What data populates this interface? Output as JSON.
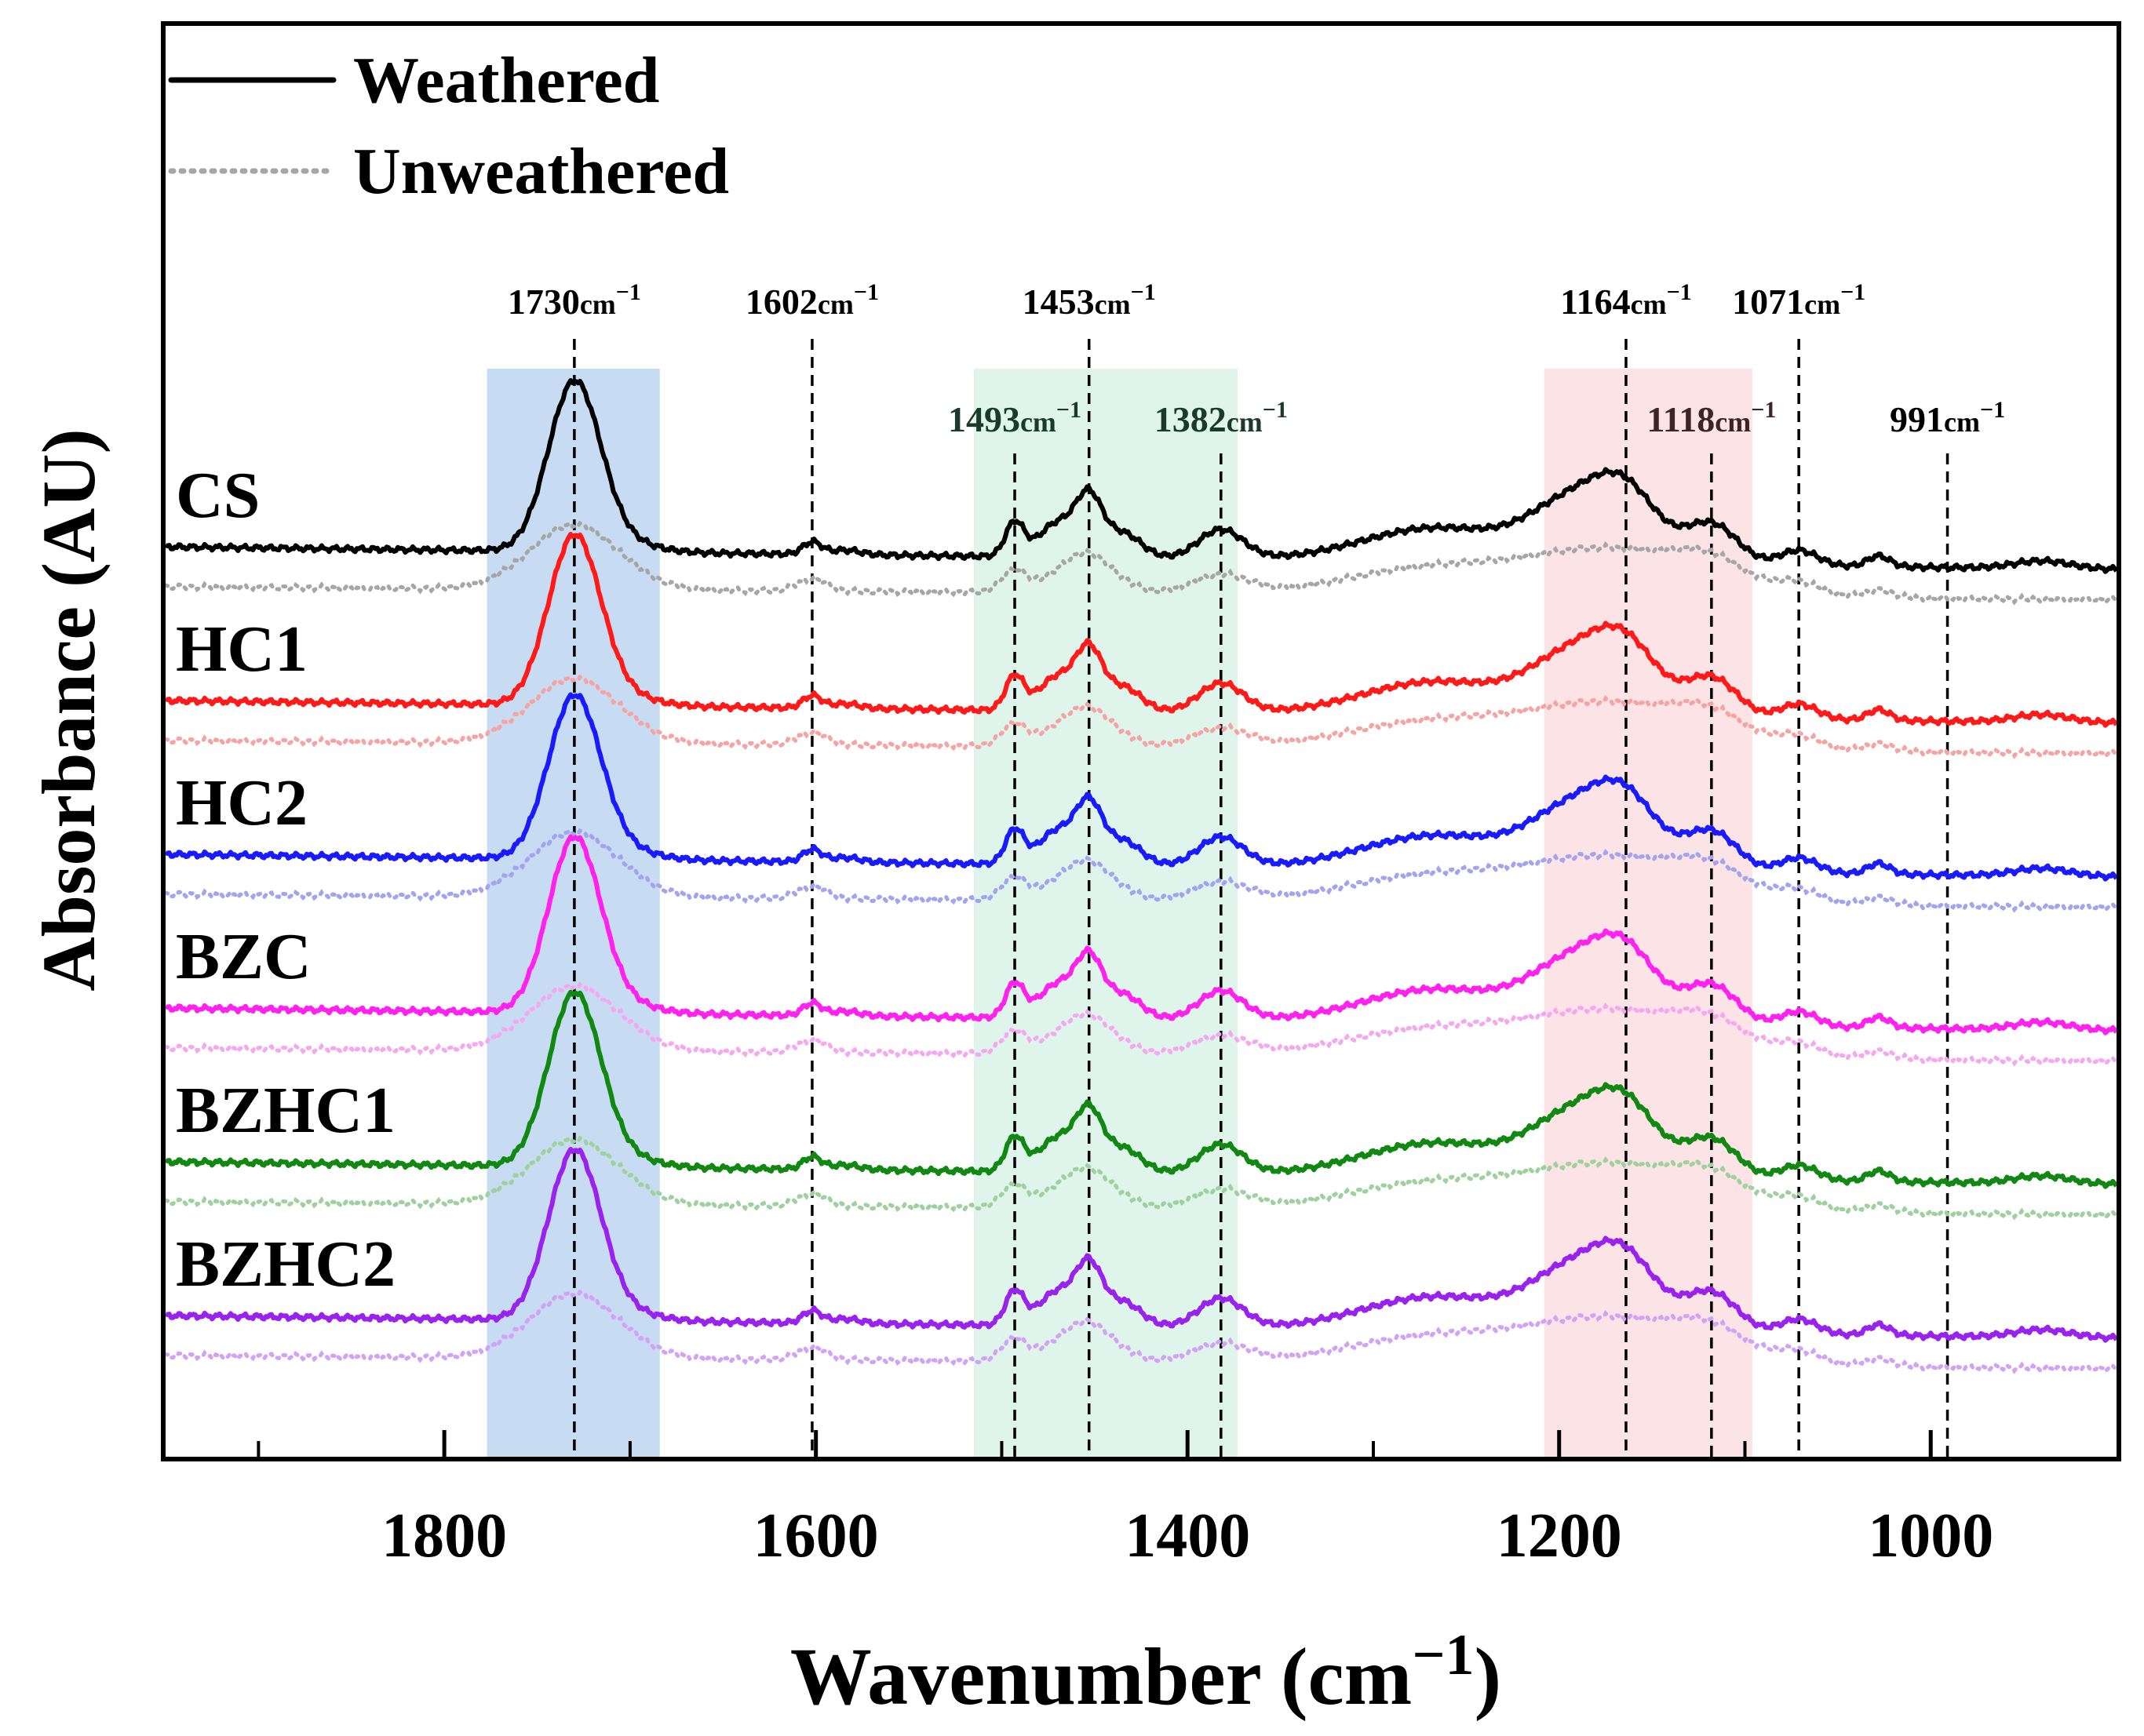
{
  "chart_data": {
    "type": "line",
    "title": "",
    "xlabel": "Wavenumber",
    "xlabel_unit": "(cm",
    "xlabel_sup": "−1",
    "xlabel_close": ")",
    "ylabel": "Absorbance (AU)",
    "xlim": [
      1950,
      900
    ],
    "x_reversed": true,
    "x_ticks": [
      1800,
      1600,
      1400,
      1200,
      1000
    ],
    "x_tick_labels": [
      "1800",
      "1600",
      "1400",
      "1200",
      "1000"
    ],
    "x_minor_ticks": [
      1900,
      1700,
      1500,
      1300,
      1100
    ],
    "y_ticks_shown": false,
    "grid": false,
    "legend_placement": "top-left",
    "legend": [
      {
        "label": "Weathered",
        "style": "solid",
        "color": "#000000"
      },
      {
        "label": "Unweathered",
        "style": "dotted",
        "color": "#a6a6a6"
      }
    ],
    "highlight_bands": [
      {
        "from": 1777,
        "to": 1684,
        "color": "#c7dcf2"
      },
      {
        "from": 1515,
        "to": 1373,
        "color": "#dff5ec"
      },
      {
        "from": 1208,
        "to": 1096,
        "color": "#fce3e6"
      }
    ],
    "annotations": [
      {
        "x": 1730,
        "label": "1730",
        "unit": "cm",
        "sup": "−1",
        "row": "upper",
        "color": "#000000"
      },
      {
        "x": 1602,
        "label": "1602",
        "unit": "cm",
        "sup": "−1",
        "row": "upper",
        "color": "#000000"
      },
      {
        "x": 1453,
        "label": "1453",
        "unit": "cm",
        "sup": "−1",
        "row": "upper",
        "color": "#000000"
      },
      {
        "x": 1164,
        "label": "1164",
        "unit": "cm",
        "sup": "−1",
        "row": "upper",
        "color": "#000000"
      },
      {
        "x": 1071,
        "label": "1071",
        "unit": "cm",
        "sup": "−1",
        "row": "upper",
        "color": "#000000"
      },
      {
        "x": 1493,
        "label": "1493",
        "unit": "cm",
        "sup": "−1",
        "row": "lower",
        "color": "#1c3a2c"
      },
      {
        "x": 1382,
        "label": "1382",
        "unit": "cm",
        "sup": "−1",
        "row": "lower",
        "color": "#1c3a2c"
      },
      {
        "x": 1118,
        "label": "1118",
        "unit": "cm",
        "sup": "−1",
        "row": "lower",
        "color": "#3d2428"
      },
      {
        "x": 991,
        "label": "991",
        "unit": "cm",
        "sup": "−1",
        "row": "lower",
        "color": "#000000"
      }
    ],
    "y_offset_step": 1.0,
    "series": [
      {
        "name": "CS",
        "color": "#000000",
        "unweathered_color": "#a6a6a6",
        "offset": 5,
        "peak_scale": 1.0
      },
      {
        "name": "HC1",
        "color": "#ff1a1a",
        "unweathered_color": "#f5a3a3",
        "offset": 4,
        "peak_scale": 1.0
      },
      {
        "name": "HC2",
        "color": "#1a1aff",
        "unweathered_color": "#a3a3f0",
        "offset": 3,
        "peak_scale": 0.96
      },
      {
        "name": "BZC",
        "color": "#ff22ee",
        "unweathered_color": "#f5a8ef",
        "offset": 2,
        "peak_scale": 1.03
      },
      {
        "name": "BZHC1",
        "color": "#118811",
        "unweathered_color": "#9fd19f",
        "offset": 1,
        "peak_scale": 1.02
      },
      {
        "name": "BZHC2",
        "color": "#9922ee",
        "unweathered_color": "#d2a3f5",
        "offset": 0,
        "peak_scale": 1.0
      }
    ],
    "weathered_profile": {
      "units": "AU",
      "baseline_start": 0.0,
      "baseline_slope_per_1000cm": -0.14,
      "bands": [
        {
          "center": 1730,
          "width": 14,
          "height": 1.09
        },
        {
          "center": 1705,
          "width": 18,
          "height": 0.06
        },
        {
          "center": 1602,
          "width": 5,
          "height": 0.08
        },
        {
          "center": 1584,
          "width": 8,
          "height": 0.03
        },
        {
          "center": 1493,
          "width": 5,
          "height": 0.22
        },
        {
          "center": 1470,
          "width": 10,
          "height": 0.22
        },
        {
          "center": 1453,
          "width": 7,
          "height": 0.36
        },
        {
          "center": 1435,
          "width": 10,
          "height": 0.16
        },
        {
          "center": 1382,
          "width": 12,
          "height": 0.19
        },
        {
          "center": 1265,
          "width": 40,
          "height": 0.22
        },
        {
          "center": 1195,
          "width": 22,
          "height": 0.33
        },
        {
          "center": 1164,
          "width": 18,
          "height": 0.43
        },
        {
          "center": 1118,
          "width": 14,
          "height": 0.26
        },
        {
          "center": 1071,
          "width": 10,
          "height": 0.1
        },
        {
          "center": 1028,
          "width": 6,
          "height": 0.07
        },
        {
          "center": 940,
          "width": 15,
          "height": 0.05
        }
      ]
    },
    "unweathered_profile": {
      "units": "AU",
      "offset_below_weathered": -0.26,
      "baseline_start": 0.0,
      "baseline_slope_per_1000cm": -0.08,
      "bands": [
        {
          "center": 1730,
          "width": 24,
          "height": 0.42
        },
        {
          "center": 1602,
          "width": 8,
          "height": 0.08
        },
        {
          "center": 1493,
          "width": 7,
          "height": 0.14
        },
        {
          "center": 1455,
          "width": 15,
          "height": 0.26
        },
        {
          "center": 1382,
          "width": 15,
          "height": 0.12
        },
        {
          "center": 1270,
          "width": 45,
          "height": 0.17
        },
        {
          "center": 1170,
          "width": 45,
          "height": 0.3
        },
        {
          "center": 1118,
          "width": 18,
          "height": 0.14
        },
        {
          "center": 1071,
          "width": 12,
          "height": 0.08
        },
        {
          "center": 1028,
          "width": 8,
          "height": 0.05
        }
      ]
    }
  }
}
